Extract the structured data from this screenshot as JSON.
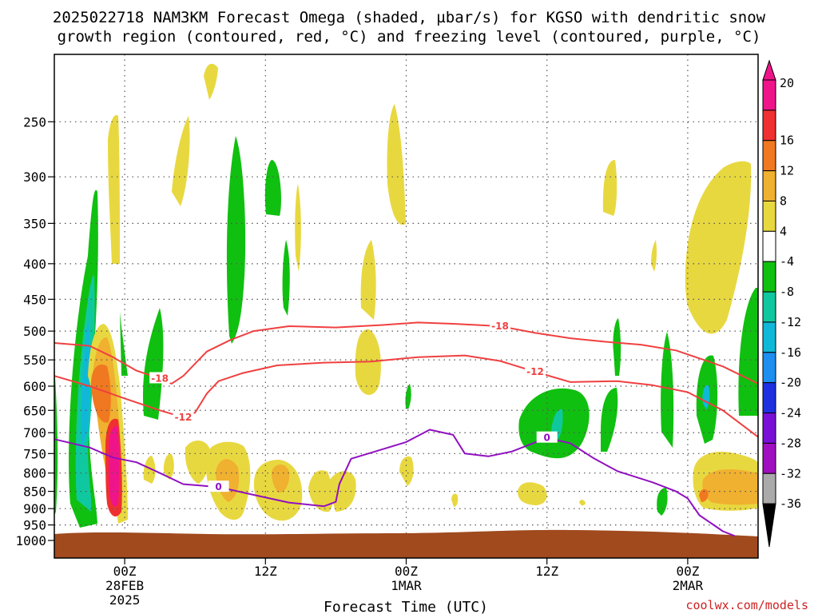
{
  "title_line1": "2025022718 NAM3KM Forecast Omega (shaded, µbar/s) for KGSO with dendritic snow",
  "title_line2": "growth region (contoured, red, °C) and freezing level (contoured, purple, °C)",
  "credit": "coolwx.com/models",
  "chart_data": {
    "type": "heatmap",
    "xlabel": "Forecast Time (UTC)",
    "x_range_hours": [
      -6,
      54
    ],
    "x_ticks": [
      {
        "hour": 0,
        "lines": [
          "00Z",
          "28FEB",
          "2025"
        ]
      },
      {
        "hour": 12,
        "lines": [
          "12Z"
        ]
      },
      {
        "hour": 24,
        "lines": [
          "00Z",
          "1MAR"
        ]
      },
      {
        "hour": 36,
        "lines": [
          "12Z"
        ]
      },
      {
        "hour": 48,
        "lines": [
          "00Z",
          "2MAR"
        ]
      }
    ],
    "y_pressure_range_hpa": [
      1060,
      200
    ],
    "y_scale": "log-pressure, inverted",
    "y_ticks": [
      "250",
      "300",
      "350",
      "400",
      "450",
      "500",
      "550",
      "600",
      "650",
      "700",
      "750",
      "800",
      "850",
      "900",
      "950",
      "1000"
    ],
    "grid": "dotted",
    "colorbar": {
      "units": "µbar/s",
      "labels": [
        "20",
        "16",
        "12",
        "8",
        "4",
        "-4",
        "-8",
        "-12",
        "-16",
        "-20",
        "-24",
        "-28",
        "-32",
        "-36"
      ],
      "colors": [
        "#f0148a",
        "#f03030",
        "#f07820",
        "#f0b030",
        "#e8d840",
        "#ffffff",
        "#10c010",
        "#10c8a0",
        "#10b8d8",
        "#1e8ef0",
        "#1e30e0",
        "#7a10d8",
        "#a010c0",
        "#aaaaaa",
        "#000000"
      ]
    },
    "contours": [
      {
        "label": "-18",
        "color": "#f04040",
        "points": [
          [
            -6,
            520
          ],
          [
            -3,
            525
          ],
          [
            -1,
            545
          ],
          [
            1,
            570
          ],
          [
            3,
            585
          ],
          [
            4,
            595
          ],
          [
            5,
            580
          ],
          [
            7,
            535
          ],
          [
            9,
            515
          ],
          [
            11,
            500
          ],
          [
            14,
            492
          ],
          [
            18,
            494
          ],
          [
            22,
            490
          ],
          [
            25,
            486
          ],
          [
            28,
            488
          ],
          [
            32,
            492
          ],
          [
            35,
            503
          ],
          [
            38,
            512
          ],
          [
            41,
            518
          ],
          [
            44,
            523
          ],
          [
            47,
            533
          ],
          [
            51,
            562
          ],
          [
            54,
            595
          ]
        ]
      },
      {
        "label": "-12",
        "color": "#f04040",
        "points": [
          [
            -6,
            580
          ],
          [
            -3,
            600
          ],
          [
            0,
            625
          ],
          [
            3,
            650
          ],
          [
            5,
            665
          ],
          [
            6,
            655
          ],
          [
            7,
            615
          ],
          [
            8,
            590
          ],
          [
            10,
            575
          ],
          [
            13,
            560
          ],
          [
            17,
            555
          ],
          [
            21,
            553
          ],
          [
            25,
            545
          ],
          [
            29,
            542
          ],
          [
            32,
            552
          ],
          [
            35,
            572
          ],
          [
            38,
            592
          ],
          [
            42,
            590
          ],
          [
            45,
            598
          ],
          [
            48,
            612
          ],
          [
            51,
            650
          ],
          [
            54,
            710
          ]
        ]
      },
      {
        "label": "0",
        "color": "#9010c0",
        "points": [
          [
            -6,
            715
          ],
          [
            -3,
            735
          ],
          [
            -1,
            760
          ],
          [
            1,
            772
          ],
          [
            3,
            800
          ],
          [
            5,
            830
          ],
          [
            8,
            838
          ],
          [
            11,
            860
          ],
          [
            14,
            882
          ],
          [
            17,
            893
          ],
          [
            18,
            880
          ],
          [
            18.3,
            830
          ],
          [
            19.3,
            763
          ],
          [
            21,
            748
          ],
          [
            24,
            722
          ],
          [
            26,
            693
          ],
          [
            28,
            705
          ],
          [
            29,
            750
          ],
          [
            31,
            757
          ],
          [
            33,
            745
          ],
          [
            36,
            712
          ],
          [
            38,
            725
          ],
          [
            40,
            762
          ],
          [
            42,
            795
          ],
          [
            45,
            825
          ],
          [
            47,
            850
          ],
          [
            48,
            870
          ],
          [
            49,
            920
          ],
          [
            51,
            970
          ],
          [
            52,
            985
          ]
        ]
      }
    ],
    "surface_below_hpa": 975
  }
}
